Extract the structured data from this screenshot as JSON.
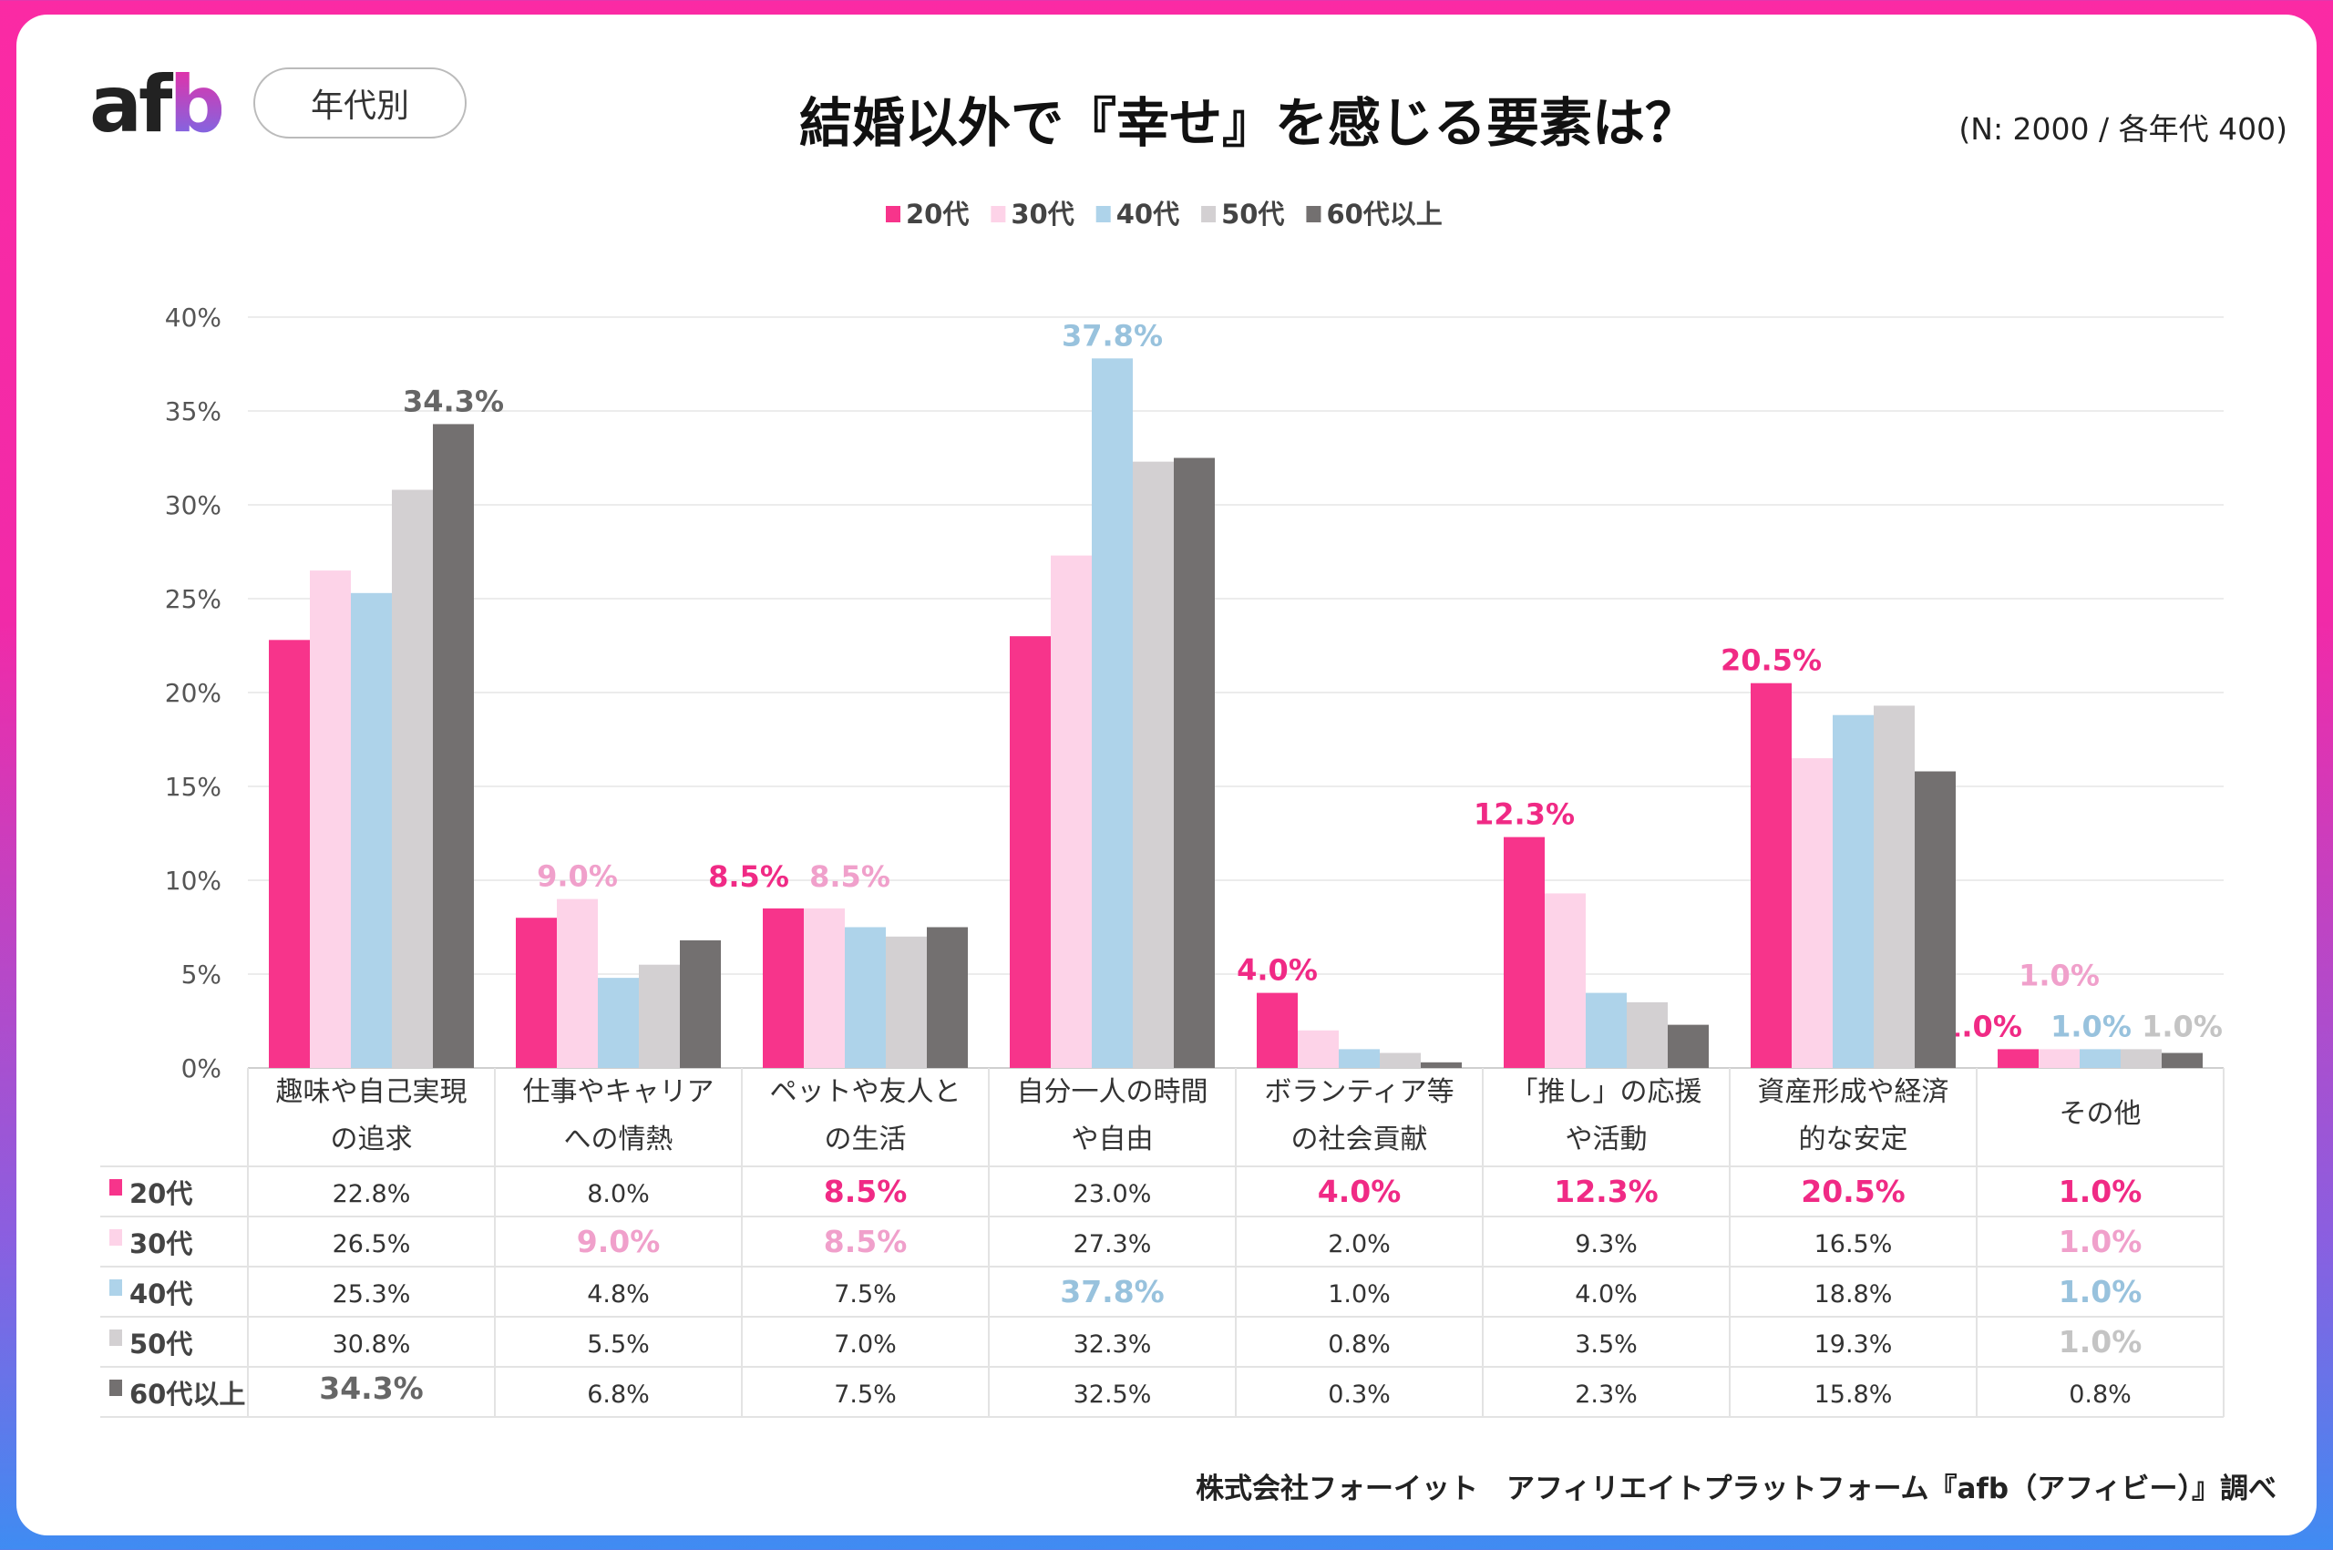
{
  "header": {
    "logo": "afb",
    "segment_label": "年代別",
    "sample_note": "(N: 2000 / 各年代 400)"
  },
  "footer": {
    "source": "株式会社フォーイット　アフィリエイトプラットフォーム『afb（アフィビー）』調べ"
  },
  "chart_data": {
    "type": "bar",
    "title": "結婚以外で『幸せ』を感じる要素は？",
    "categories": [
      [
        "趣味や自己実現",
        "の追求"
      ],
      [
        "仕事やキャリア",
        "への情熱"
      ],
      [
        "ペットや友人と",
        "の生活"
      ],
      [
        "自分一人の時間",
        "や自由"
      ],
      [
        "ボランティア等",
        "の社会貢献"
      ],
      [
        "「推し」の応援",
        "や活動"
      ],
      [
        "資産形成や経済",
        "的な安定"
      ],
      [
        "その他"
      ]
    ],
    "series": [
      {
        "name": "20代",
        "color": "#f7348b",
        "label_color": "#f02a85",
        "values": [
          22.8,
          8.0,
          8.5,
          23.0,
          4.0,
          12.3,
          20.5,
          1.0
        ]
      },
      {
        "name": "30代",
        "color": "#fdd3e8",
        "label_color": "#f0a0cb",
        "values": [
          26.5,
          9.0,
          8.5,
          27.3,
          2.0,
          9.3,
          16.5,
          1.0
        ]
      },
      {
        "name": "40代",
        "color": "#aed3ea",
        "label_color": "#98c2dd",
        "values": [
          25.3,
          4.8,
          7.5,
          37.8,
          1.0,
          4.0,
          18.8,
          1.0
        ]
      },
      {
        "name": "50代",
        "color": "#d3d0d2",
        "label_color": "#c4c4c4",
        "values": [
          30.8,
          5.5,
          7.0,
          32.3,
          0.8,
          3.5,
          19.3,
          1.0
        ]
      },
      {
        "name": "60代以上",
        "color": "#737070",
        "label_color": "#666666",
        "values": [
          34.3,
          6.8,
          7.5,
          32.5,
          0.3,
          2.3,
          15.8,
          0.8
        ]
      }
    ],
    "highlights": [
      [
        4,
        0
      ],
      [
        1,
        1
      ],
      [
        0,
        2
      ],
      [
        1,
        2
      ],
      [
        2,
        3
      ],
      [
        0,
        4
      ],
      [
        0,
        5
      ],
      [
        0,
        6
      ],
      [
        0,
        7
      ],
      [
        1,
        7
      ],
      [
        2,
        7
      ],
      [
        3,
        7
      ]
    ],
    "ylim": [
      0,
      40
    ],
    "yticks": [
      "0%",
      "5%",
      "10%",
      "15%",
      "20%",
      "25%",
      "30%",
      "35%",
      "40%"
    ],
    "grid": true,
    "legend": "top-center",
    "data_table": true
  }
}
